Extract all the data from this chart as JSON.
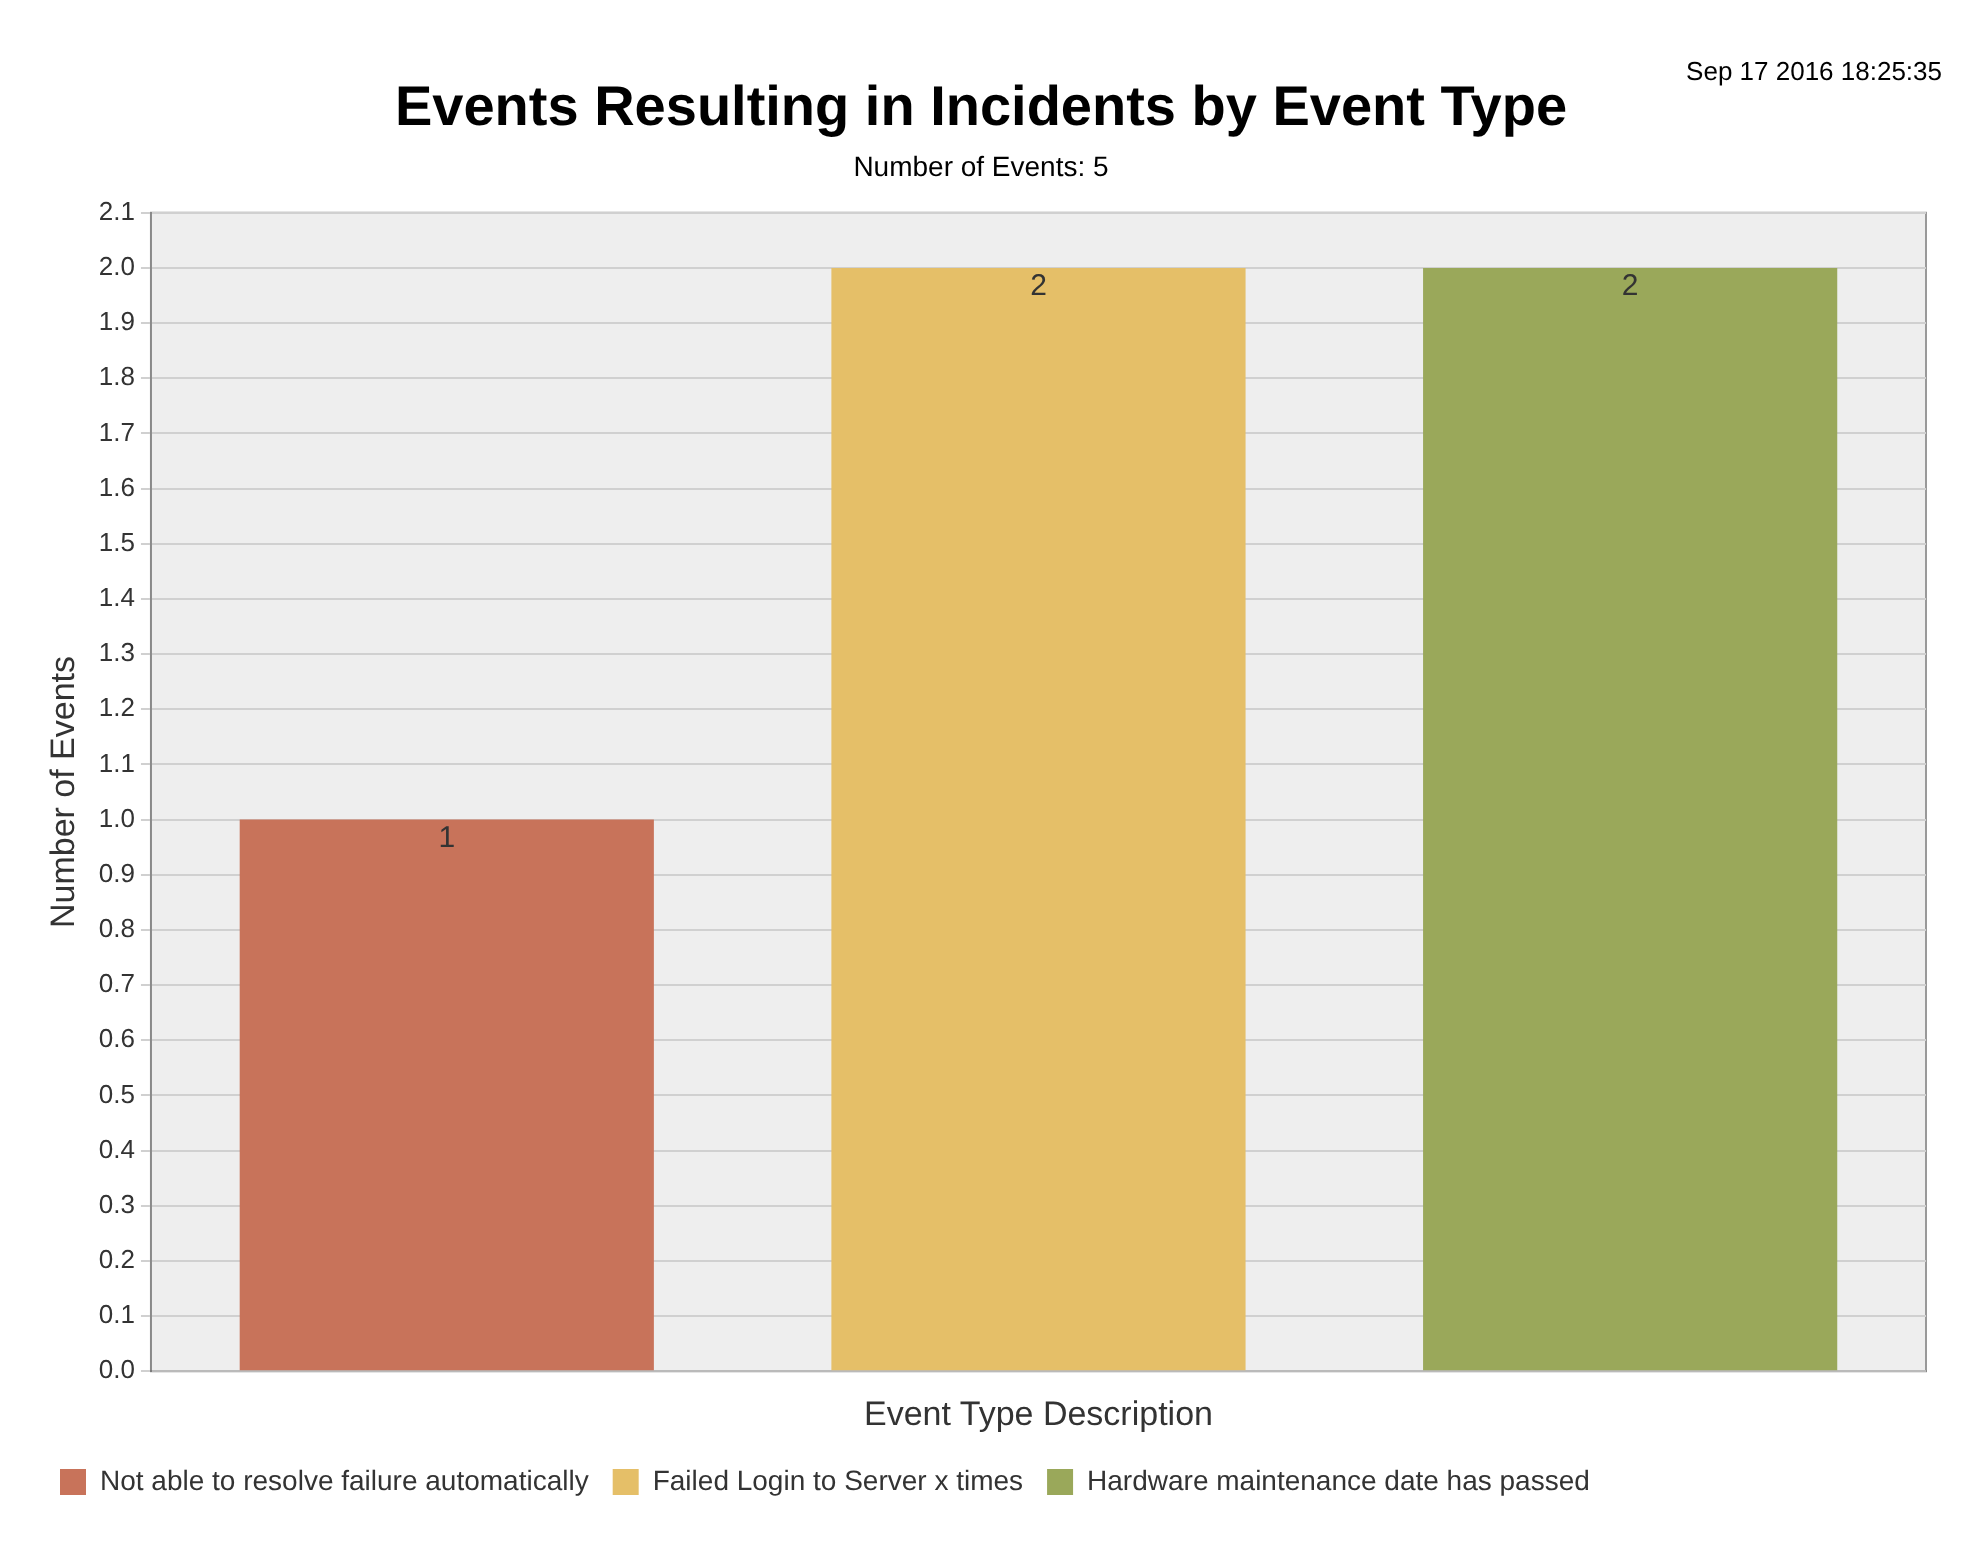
{
  "chart_data": {
    "type": "bar",
    "title": "Events Resulting in Incidents by Event Type",
    "subtitle": "Number of Events: 5",
    "xlabel": "Event Type Description",
    "ylabel": "Number of Events",
    "annotations": [
      "Sep 17 2016 18:25:35"
    ],
    "categories": [
      null,
      null,
      null
    ],
    "series": [
      {
        "name": "Not able to resolve failure automatically",
        "color": "#c8735a",
        "values": [
          1,
          null,
          null
        ]
      },
      {
        "name": "Failed Login to Server x times",
        "color": "#e5bf68",
        "values": [
          null,
          2,
          null
        ]
      },
      {
        "name": "Hardware maintenance date has passed",
        "color": "#9aa85a",
        "values": [
          null,
          null,
          2
        ]
      }
    ],
    "ylim": [
      0,
      2.1
    ],
    "yticks": [
      {
        "value": 0,
        "label": "0.0"
      },
      0.1,
      0.2,
      0.3,
      0.4,
      0.5,
      0.6,
      0.7,
      0.8,
      0.9,
      {
        "value": 1,
        "label": "1.0"
      },
      1.1,
      1.2,
      1.3,
      1.4,
      1.5,
      1.6,
      1.7,
      1.8,
      1.9,
      {
        "value": 2,
        "label": "2.0"
      },
      2.1
    ],
    "grid": "y",
    "legend": "bottom",
    "data_labels": true
  }
}
